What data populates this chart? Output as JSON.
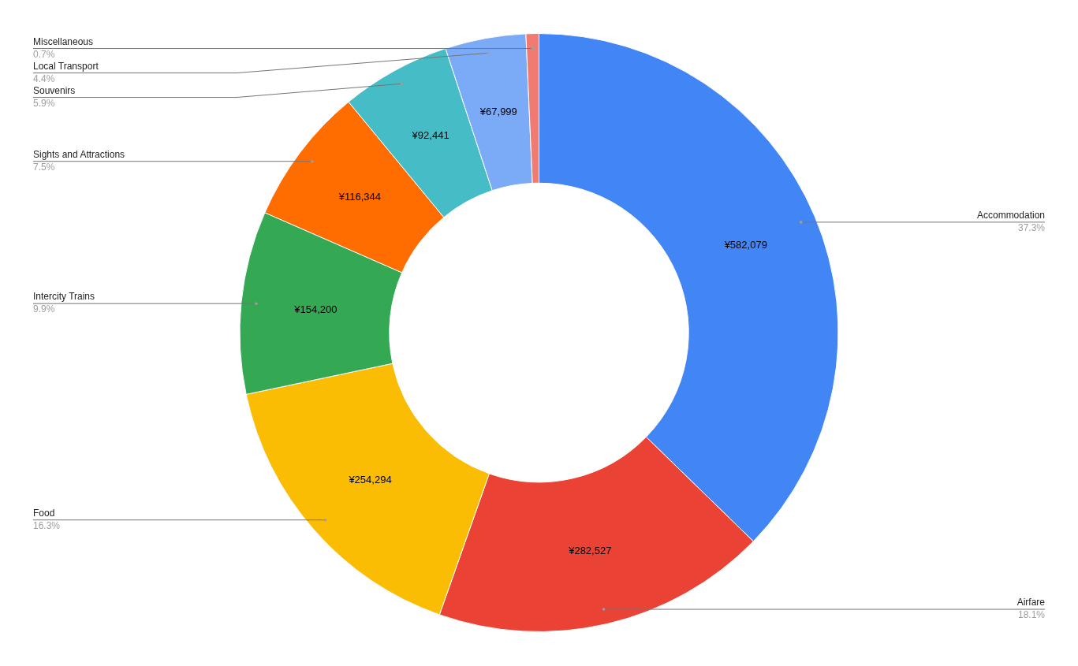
{
  "chart_data": {
    "type": "donut",
    "categories": [
      "Accommodation",
      "Airfare",
      "Food",
      "Intercity Trains",
      "Sights and Attractions",
      "Souvenirs",
      "Local Transport",
      "Miscellaneous"
    ],
    "values": [
      582079,
      282527,
      254294,
      154200,
      116344,
      92441,
      67999,
      10900
    ],
    "colors": [
      "#4285f4",
      "#ea4335",
      "#fbbc04",
      "#34a853",
      "#ff6d01",
      "#46bdc6",
      "#7baaf7",
      "#f07b72"
    ],
    "value_labels": [
      "¥582,079",
      "¥282,527",
      "¥254,294",
      "¥154,200",
      "¥116,344",
      "¥92,441",
      "¥67,999",
      null
    ],
    "annotations": [
      "37.3%",
      "18.1%",
      "16.3%",
      "9.9%",
      "7.5%",
      "5.9%",
      "4.4%",
      "0.7%"
    ],
    "legend": false
  }
}
